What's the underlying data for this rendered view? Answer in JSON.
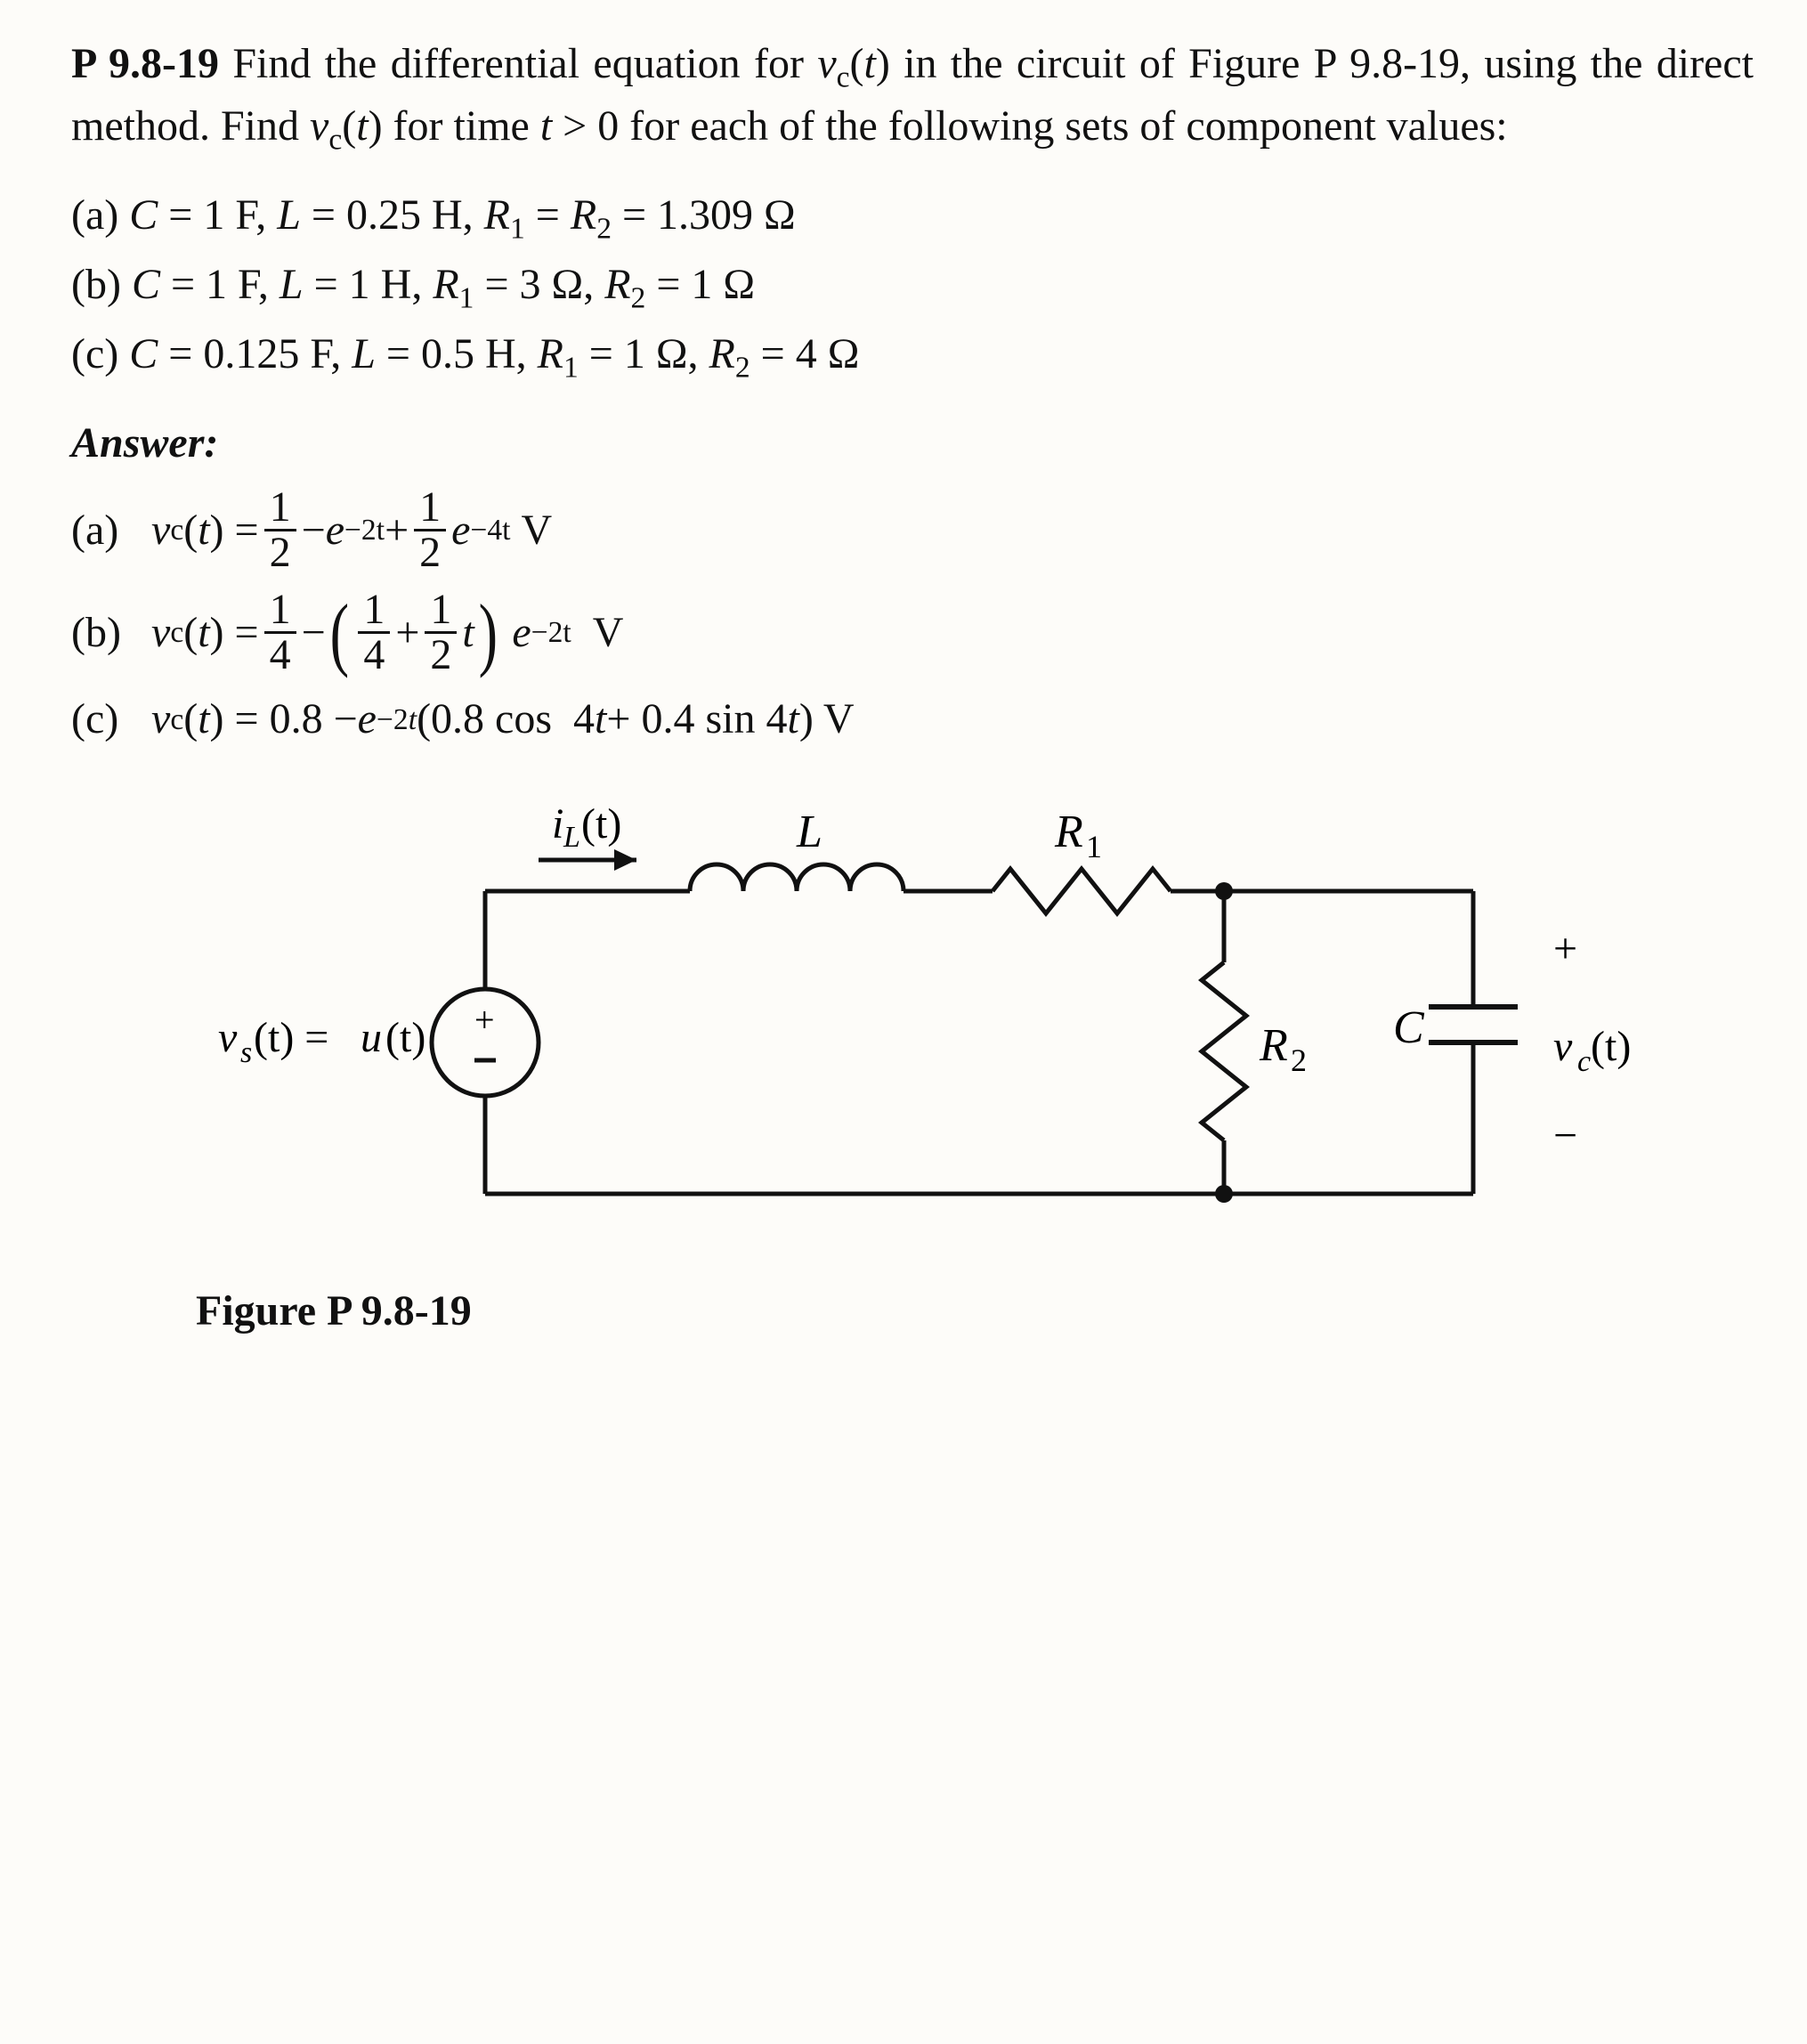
{
  "problem": {
    "number": "P 9.8-19",
    "statement_html": "Find the differential equation for <span class='italic'>v</span><span class='sub'>c</span>(<span class='italic'>t</span>) in the circuit of Figure P 9.8-19, using the direct method. Find <span class='italic'>v</span><span class='sub'>c</span>(<span class='italic'>t</span>) for time <span class='italic'>t</span> &gt; 0 for each of the following sets of component values:"
  },
  "parts": {
    "a": "C = 1 F, L = 0.25 H, R₁ = R₂ = 1.309 Ω",
    "b": "C = 1 F, L = 1 H, R₁ = 3 Ω, R₂ = 1 Ω",
    "c": "C = 0.125 F, L = 0.5 H, R₁ = 1 Ω, R₂ = 4 Ω"
  },
  "answer_heading": "Answer:",
  "answers": {
    "a": {
      "frac1_num": "1",
      "frac1_den": "2",
      "exp1": "−2t",
      "frac2_num": "1",
      "frac2_den": "2",
      "exp2": "−4t",
      "unit": "V"
    },
    "b": {
      "frac1_num": "1",
      "frac1_den": "4",
      "inner_frac1_num": "1",
      "inner_frac1_den": "4",
      "inner_frac2_num": "1",
      "inner_frac2_den": "2",
      "t": "t",
      "exp": "−2t",
      "unit": "V"
    },
    "c": {
      "expr": "0.8 − e⁻²ᵗ(0.8 cos  4t + 0.4 sin 4t) V"
    }
  },
  "figure": {
    "caption": "Figure P 9.8-19",
    "labels": {
      "iL": "i_L(t)",
      "L": "L",
      "R1": "R₁",
      "R2": "R₂",
      "C": "C",
      "vs": "v_s(t) = u(t)",
      "vc": "v_c(t)",
      "plus": "+",
      "minus": "−"
    },
    "colors": {
      "stroke": "#111111",
      "background": "#fdfcf9"
    },
    "stroke_width": 5
  }
}
